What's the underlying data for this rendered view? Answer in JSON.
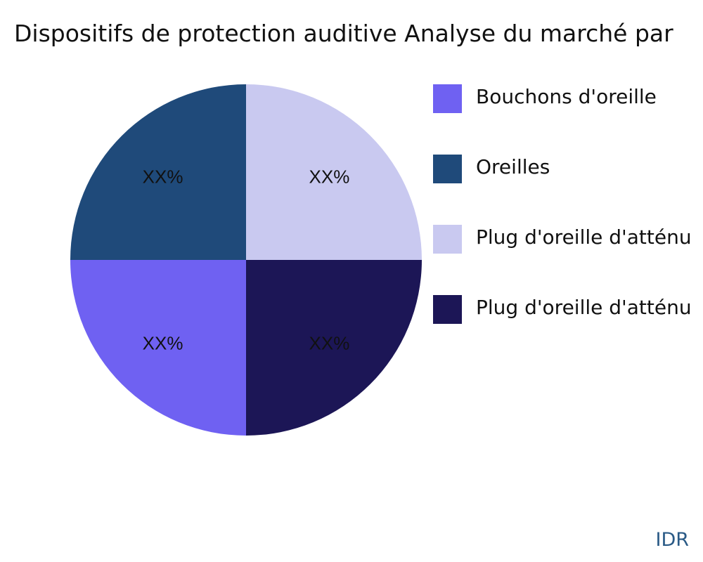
{
  "chart_data": {
    "type": "pie",
    "title": "Dispositifs de protection auditive Analyse du marché par",
    "slices": [
      {
        "name": "Bouchons d'oreille",
        "value": 25,
        "label": "XX%",
        "color": "#6f61f2"
      },
      {
        "name": "Oreilles",
        "value": 25,
        "label": "XX%",
        "color": "#1f4a7a"
      },
      {
        "name": "Plug d'oreille d'atténu",
        "value": 25,
        "label": "XX%",
        "color": "#c9c9f0"
      },
      {
        "name": "Plug d'oreille d'atténu",
        "value": 25,
        "label": "XX%",
        "color": "#1c1656"
      }
    ],
    "legend_position": "right"
  },
  "watermark": "IDR"
}
